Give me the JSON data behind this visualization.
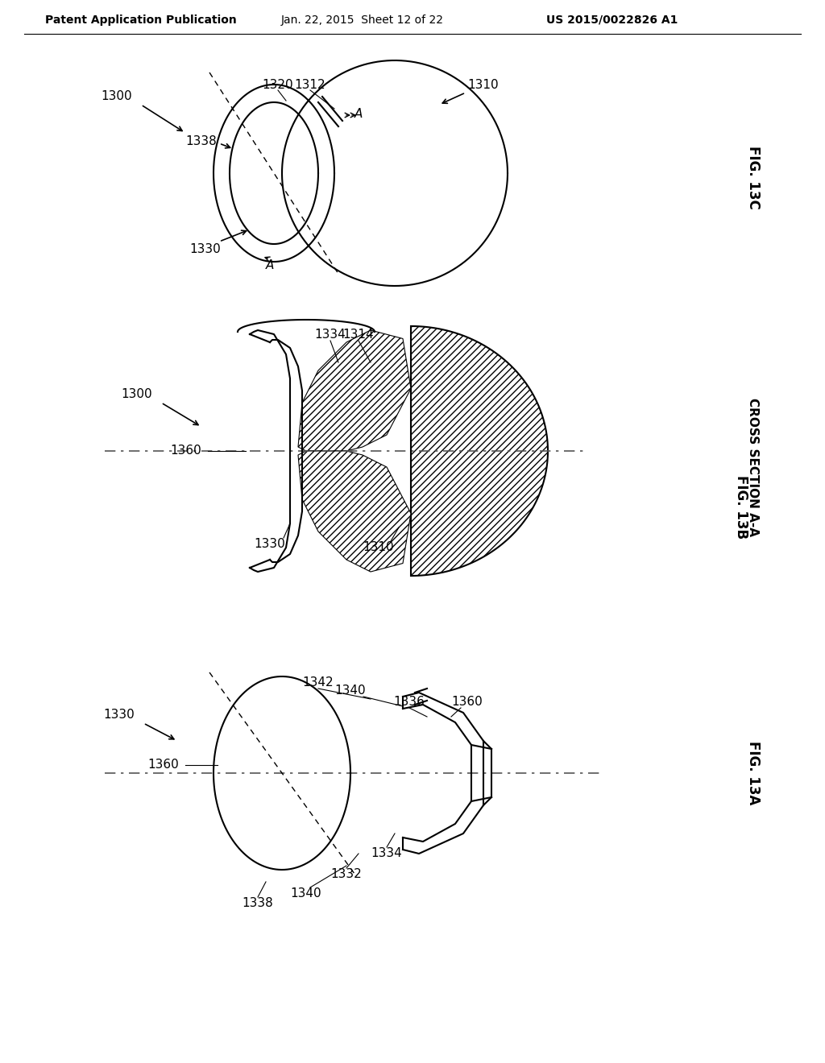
{
  "bg_color": "#ffffff",
  "header_text": "Patent Application Publication",
  "header_date": "Jan. 22, 2015  Sheet 12 of 22",
  "header_patent": "US 2015/0022826 A1",
  "fig_13c_label": "FIG. 13C",
  "fig_13b_label": "FIG. 13B",
  "fig_13b_sublabel": "CROSS SECTION A-A",
  "fig_13a_label": "FIG. 13A",
  "line_color": "#000000",
  "hatch_color": "#000000",
  "dashed_color": "#555555"
}
